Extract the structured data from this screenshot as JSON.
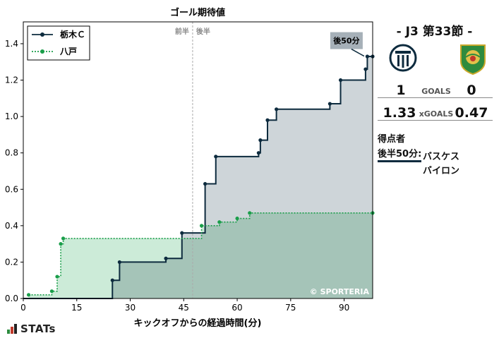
{
  "chart_data": {
    "type": "step-area",
    "title": "ゴール期待値",
    "xlabel": "キックオフからの経過時間(分)",
    "ylabel": "",
    "xlim": [
      0,
      98
    ],
    "ylim": [
      0,
      1.52
    ],
    "xticks": [
      0,
      15,
      30,
      45,
      60,
      75,
      90
    ],
    "yticks": [
      0.0,
      0.2,
      0.4,
      0.6,
      0.8,
      1.0,
      1.2,
      1.4
    ],
    "halftime_x": 47.5,
    "halftime_labels": [
      "前半",
      "後半"
    ],
    "watermark": "© SPORTERIA",
    "annotation": {
      "text": "後50分",
      "x": 96,
      "y": 1.32
    },
    "series": [
      {
        "name": "栃木Ｃ",
        "color": "#0d2b3e",
        "fill": "#8a9aa5",
        "points": [
          [
            0,
            0
          ],
          [
            25,
            0.1
          ],
          [
            27,
            0.2
          ],
          [
            40,
            0.22
          ],
          [
            44.5,
            0.36
          ],
          [
            51,
            0.63
          ],
          [
            54,
            0.78
          ],
          [
            66,
            0.8
          ],
          [
            66.5,
            0.87
          ],
          [
            68.5,
            0.98
          ],
          [
            71,
            1.04
          ],
          [
            86,
            1.07
          ],
          [
            89,
            1.2
          ],
          [
            96,
            1.26
          ],
          [
            96.5,
            1.33
          ],
          [
            98,
            1.33
          ]
        ]
      },
      {
        "name": "八戸",
        "color": "#1a9e4a",
        "fill": "#8fd2a8",
        "points": [
          [
            1.5,
            0.02
          ],
          [
            8,
            0.04
          ],
          [
            9.5,
            0.12
          ],
          [
            10.5,
            0.3
          ],
          [
            11.2,
            0.33
          ],
          [
            50,
            0.4
          ],
          [
            55,
            0.42
          ],
          [
            60,
            0.44
          ],
          [
            63.5,
            0.47
          ],
          [
            98,
            0.47
          ]
        ]
      }
    ]
  },
  "match": {
    "title": "-  J3 第33節  -",
    "home_goals": "1",
    "away_goals": "0",
    "goals_label": "GOALS",
    "home_xg": "1.33",
    "away_xg": "0.47",
    "xg_label": "xGOALS",
    "scorers_title": "得点者",
    "goal_time": "後半50分:",
    "goal_player_line1": "バスケス",
    "goal_player_line2": "バイロン",
    "home_color": "#0d2b3e",
    "away_color": "#2e8b3e"
  },
  "brand": "STATs"
}
